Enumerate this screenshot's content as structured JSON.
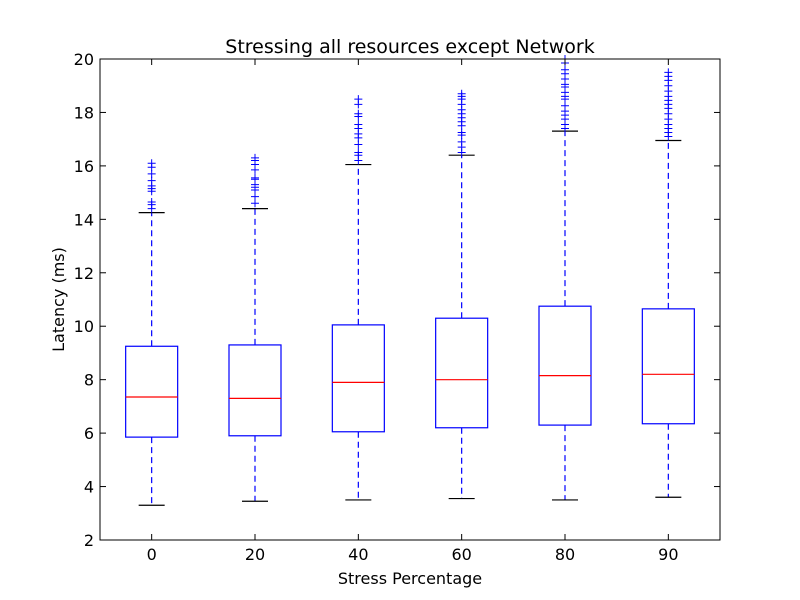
{
  "chart_data": {
    "type": "box",
    "title": "Stressing all resources except Network",
    "xlabel": "Stress Percentage",
    "ylabel": "Latency (ms)",
    "ylim": [
      2,
      20
    ],
    "yticks": [
      "2",
      "4",
      "6",
      "8",
      "10",
      "12",
      "14",
      "16",
      "18",
      "20"
    ],
    "categories": [
      "0",
      "20",
      "40",
      "60",
      "80",
      "90"
    ],
    "grid": false,
    "colors": {
      "box": "#0000ff",
      "median": "#ff0000",
      "whisker": "#0000ff",
      "cap": "#000000",
      "flier": "#0000ff"
    },
    "boxes": [
      {
        "category": "0",
        "whislo": 3.3,
        "q1": 5.85,
        "median": 7.35,
        "q3": 9.25,
        "whishi": 14.25,
        "fliers": [
          14.4,
          14.55,
          14.65,
          15.05,
          15.15,
          15.25,
          15.45,
          15.7,
          15.95,
          16.1
        ]
      },
      {
        "category": "20",
        "whislo": 3.45,
        "q1": 5.9,
        "median": 7.3,
        "q3": 9.3,
        "whishi": 14.4,
        "fliers": [
          14.6,
          14.85,
          15.1,
          15.2,
          15.3,
          15.5,
          15.55,
          15.85,
          16.05,
          16.2,
          16.3
        ]
      },
      {
        "category": "40",
        "whislo": 3.5,
        "q1": 6.05,
        "median": 7.9,
        "q3": 10.05,
        "whishi": 16.05,
        "fliers": [
          16.2,
          16.4,
          16.5,
          16.8,
          17.05,
          17.2,
          17.4,
          17.55,
          17.85,
          17.95,
          18.3,
          18.5
        ]
      },
      {
        "category": "60",
        "whislo": 3.55,
        "q1": 6.2,
        "median": 8.0,
        "q3": 10.3,
        "whishi": 16.4,
        "fliers": [
          16.5,
          16.7,
          16.9,
          17.15,
          17.25,
          17.5,
          17.65,
          17.8,
          17.95,
          18.1,
          18.3,
          18.5,
          18.6,
          18.7
        ]
      },
      {
        "category": "80",
        "whislo": 3.5,
        "q1": 6.3,
        "median": 8.15,
        "q3": 10.75,
        "whishi": 17.3,
        "fliers": [
          17.4,
          17.55,
          17.75,
          17.9,
          18.05,
          18.25,
          18.5,
          18.6,
          18.75,
          18.95,
          19.05,
          19.25,
          19.45,
          19.6,
          19.85,
          20.0
        ]
      },
      {
        "category": "90",
        "whislo": 3.6,
        "q1": 6.35,
        "median": 8.2,
        "q3": 10.65,
        "whishi": 16.95,
        "fliers": [
          17.1,
          17.25,
          17.4,
          17.55,
          17.75,
          17.95,
          18.15,
          18.3,
          18.45,
          18.6,
          18.8,
          19.0,
          19.2,
          19.35,
          19.5
        ]
      }
    ]
  }
}
